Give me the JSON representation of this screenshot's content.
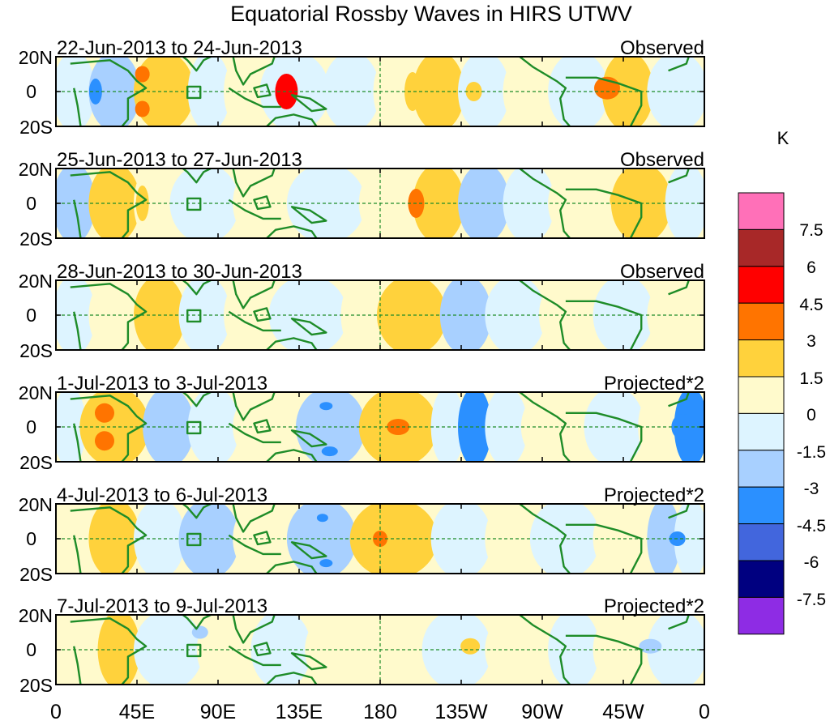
{
  "title": "Equatorial Rossby Waves in HIRS UTWV",
  "colorbar": {
    "unit_label": "K",
    "levels": [
      "7.5",
      "6",
      "4.5",
      "3",
      "1.5",
      "0",
      "-1.5",
      "-3",
      "-4.5",
      "-6",
      "-7.5"
    ],
    "colors": [
      "#ff70b8",
      "#a82828",
      "#ff0000",
      "#ff7400",
      "#ffd23c",
      "#fffacc",
      "#ddf4ff",
      "#a8d0ff",
      "#2b90ff",
      "#4266dd",
      "#000080",
      "#8e2ce4"
    ]
  },
  "axes": {
    "lat_ticks": [
      "20N",
      "0",
      "20S"
    ],
    "lon_ticks": [
      "0",
      "45E",
      "90E",
      "135E",
      "180",
      "135W",
      "90W",
      "45W",
      "0"
    ]
  },
  "panels": [
    {
      "date_range": "22-Jun-2013 to 24-Jun-2013",
      "type": "Observed"
    },
    {
      "date_range": "25-Jun-2013 to 27-Jun-2013",
      "type": "Observed"
    },
    {
      "date_range": "28-Jun-2013 to 30-Jun-2013",
      "type": "Observed"
    },
    {
      "date_range": "1-Jul-2013 to 3-Jul-2013",
      "type": "Projected*2"
    },
    {
      "date_range": "4-Jul-2013 to 6-Jul-2013",
      "type": "Projected*2"
    },
    {
      "date_range": "7-Jul-2013 to 9-Jul-2013",
      "type": "Projected*2"
    }
  ],
  "style": {
    "coast_color": "#1e8c28",
    "frame_color": "#000000",
    "dash_color": "#1e8c28"
  }
}
